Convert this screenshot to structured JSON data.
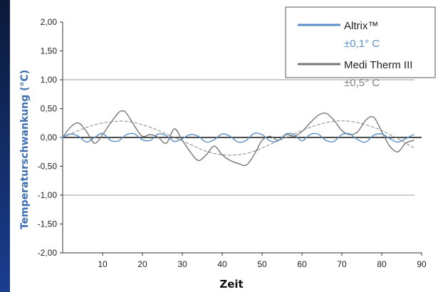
{
  "colors": {
    "edge_bar_top": "#0b1a3a",
    "edge_bar_bottom": "#1a3d8f",
    "ylabel": "#3d6fb5",
    "xlabel": "#111111",
    "gridline": "#9a9a9a",
    "zero_line": "#111111",
    "legend_border": "#555555",
    "accuracy_altrix": "#5a8fc7",
    "accuracy_medi": "#808080"
  },
  "chart_data": {
    "type": "line",
    "xlabel": "Zeit",
    "ylabel": "Temperaturschwankung (°C)",
    "xlim": [
      0,
      90
    ],
    "ylim": [
      -2.0,
      2.0
    ],
    "x_ticks": [
      "10",
      "20",
      "30",
      "40",
      "50",
      "60",
      "70",
      "80",
      "90"
    ],
    "y_ticks": [
      "2,00",
      "1,50",
      "1,00",
      "0,50",
      "0,00",
      "-0,50",
      "-1,00",
      "-1,50",
      "-2,00"
    ],
    "y_tick_values": [
      2.0,
      1.5,
      1.0,
      0.5,
      0.0,
      -0.5,
      -1.0,
      -1.5,
      -2.0
    ],
    "reference_lines": [
      1.0,
      -1.0
    ],
    "legend_position": "top-right",
    "series": [
      {
        "name": "Altrix™",
        "accuracy": "±0,1° C",
        "color": "#5a8fc7",
        "x": [
          0,
          2,
          4,
          6,
          8,
          10,
          12,
          14,
          16,
          18,
          20,
          22,
          24,
          26,
          28,
          30,
          32,
          34,
          36,
          38,
          40,
          42,
          44,
          46,
          48,
          50,
          52,
          54,
          56,
          58,
          60,
          62,
          64,
          66,
          68,
          70,
          72,
          74,
          76,
          78,
          80,
          82,
          84,
          86,
          88
        ],
        "values": [
          0.0,
          0.06,
          0.02,
          -0.08,
          0.0,
          0.07,
          -0.05,
          -0.06,
          0.05,
          0.06,
          -0.04,
          -0.05,
          0.06,
          0.03,
          -0.07,
          -0.02,
          0.05,
          0.02,
          -0.08,
          -0.04,
          0.06,
          0.02,
          -0.08,
          -0.05,
          0.07,
          0.05,
          -0.06,
          -0.06,
          0.06,
          0.05,
          -0.06,
          0.05,
          0.06,
          -0.05,
          -0.07,
          0.05,
          0.06,
          -0.04,
          -0.08,
          0.04,
          0.06,
          -0.02,
          -0.08,
          -0.02,
          0.05
        ]
      },
      {
        "name": "Medi Therm III",
        "accuracy": "±0,5° C",
        "color": "#777777",
        "x": [
          0,
          2,
          4,
          6,
          8,
          10,
          12,
          14,
          15,
          16,
          18,
          20,
          22,
          24,
          26,
          28,
          30,
          32,
          34,
          36,
          38,
          40,
          42,
          44,
          46,
          48,
          50,
          52,
          54,
          56,
          58,
          60,
          62,
          64,
          66,
          68,
          70,
          72,
          74,
          76,
          78,
          80,
          82,
          84,
          86,
          88
        ],
        "values": [
          0.0,
          0.18,
          0.25,
          0.1,
          -0.1,
          0.05,
          0.25,
          0.43,
          0.46,
          0.42,
          0.2,
          0.02,
          0.05,
          0.0,
          -0.1,
          0.15,
          -0.05,
          -0.25,
          -0.4,
          -0.3,
          -0.15,
          -0.3,
          -0.4,
          -0.45,
          -0.48,
          -0.3,
          -0.05,
          0.02,
          -0.05,
          0.05,
          0.02,
          0.1,
          0.25,
          0.38,
          0.42,
          0.3,
          0.12,
          0.05,
          0.1,
          0.3,
          0.35,
          0.1,
          -0.15,
          -0.25,
          -0.1,
          -0.05
        ]
      },
      {
        "name": "",
        "style": "dashed",
        "color": "#888888",
        "x": [
          0,
          4,
          8,
          12,
          16,
          20,
          24,
          28,
          32,
          36,
          40,
          44,
          48,
          52,
          56,
          60,
          64,
          68,
          72,
          76,
          80,
          84,
          88
        ],
        "values": [
          0.0,
          0.12,
          0.22,
          0.27,
          0.28,
          0.22,
          0.12,
          0.0,
          -0.12,
          -0.24,
          -0.3,
          -0.3,
          -0.24,
          -0.12,
          0.0,
          0.12,
          0.22,
          0.28,
          0.28,
          0.22,
          0.12,
          -0.02,
          -0.18
        ]
      }
    ]
  }
}
